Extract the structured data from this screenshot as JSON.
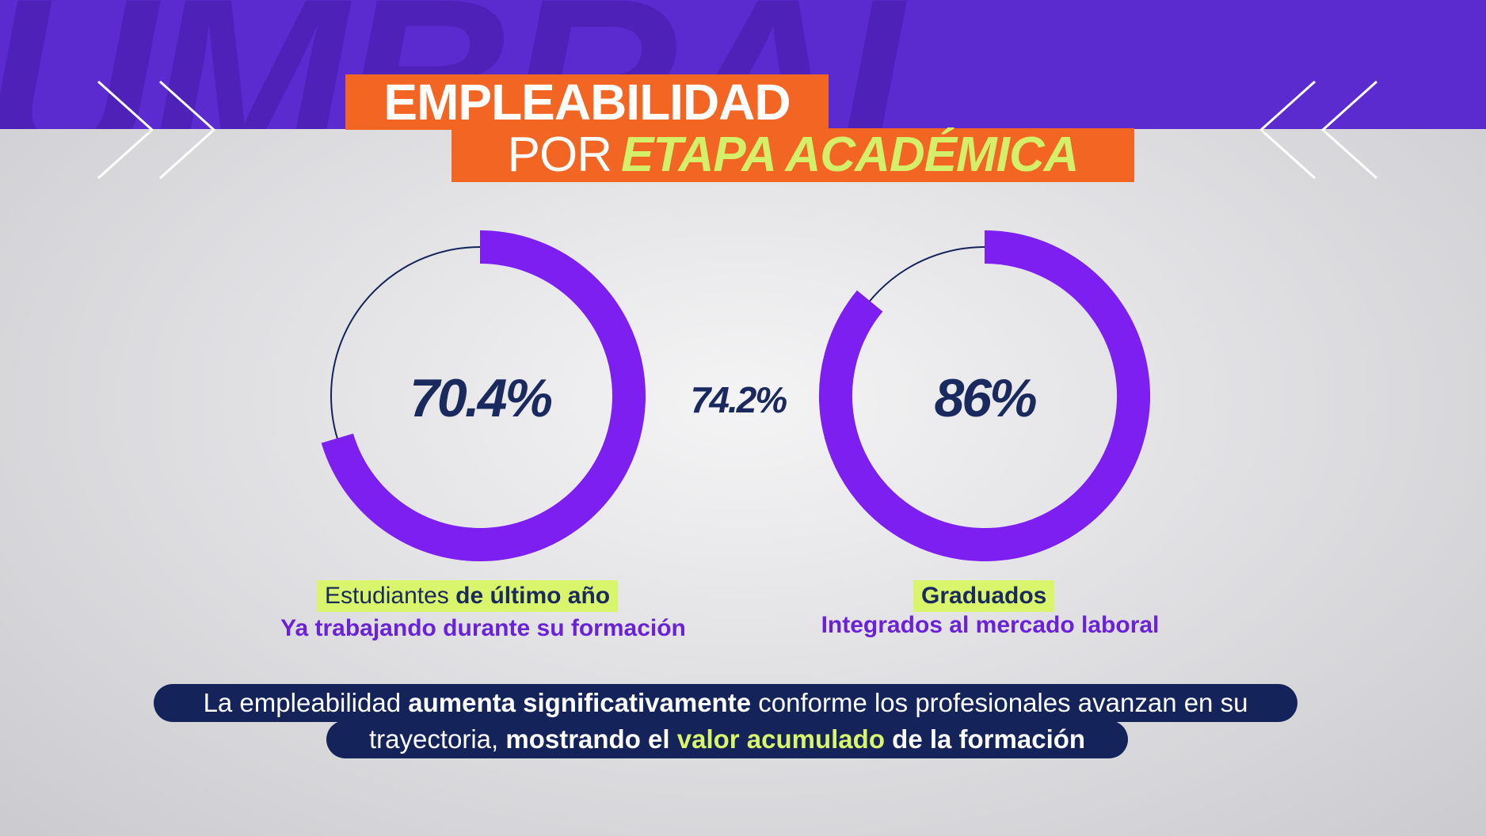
{
  "title": {
    "line1": "EMPLEABILIDAD",
    "line2_part1": "POR",
    "line2_part2": "ETAPA ACADÉMICA"
  },
  "band_watermark": "UMBRAL",
  "colors": {
    "band": "#5b2bd0",
    "title_bg": "#f26522",
    "accent_green": "#d8f56b",
    "ring_purple": "#7c1ff0",
    "navy": "#14245a"
  },
  "stats": {
    "left": {
      "value": "70.4%",
      "fraction": 0.704,
      "label_regular": "Estudiantes",
      "label_bold": "de último año",
      "sublabel": "Ya trabajando durante su formación"
    },
    "middle": {
      "value": "74.2%"
    },
    "right": {
      "value": "86%",
      "fraction": 0.86,
      "label": "Graduados",
      "sublabel": "Integrados al mercado laboral"
    }
  },
  "footer": {
    "p1": "La empleabilidad",
    "p2": "aumenta significativamente",
    "p3": "conforme los profesionales avanzan en su",
    "p4": "trayectoria,",
    "p5": "mostrando el",
    "p6": "valor acumulado",
    "p7": "de la formación"
  }
}
